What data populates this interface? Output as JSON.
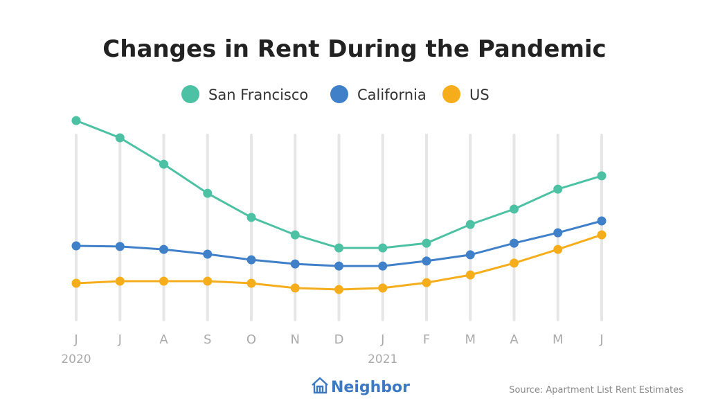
{
  "chart_data": {
    "type": "line",
    "title": "Changes in Rent During the Pandemic",
    "categories": [
      "J",
      "J",
      "A",
      "S",
      "O",
      "N",
      "D",
      "J",
      "F",
      "M",
      "A",
      "M",
      "J"
    ],
    "year_labels": [
      {
        "index": 0,
        "label": "2020"
      },
      {
        "index": 7,
        "label": "2021"
      }
    ],
    "ylim": [
      0,
      100
    ],
    "y_axis_labels_shown": false,
    "grid": "vertical",
    "legend_position": "top",
    "series": [
      {
        "name": "San Francisco",
        "color": "#4cc1a3",
        "values": [
          95.3,
          87,
          74.3,
          60.3,
          48.7,
          40.3,
          34,
          34,
          36.3,
          45.3,
          52.7,
          62.3,
          68.7
        ]
      },
      {
        "name": "California",
        "color": "#3f80c8",
        "values": [
          35,
          34.7,
          33.3,
          31,
          28.3,
          26.3,
          25.3,
          25.3,
          27.7,
          30.7,
          36.3,
          41.3,
          47
        ]
      },
      {
        "name": "US",
        "color": "#f5ad1c",
        "values": [
          17,
          18,
          18,
          18,
          17,
          14.7,
          14,
          14.7,
          17.3,
          21,
          26.7,
          33.3,
          40.3
        ]
      }
    ]
  },
  "footer": {
    "brand": "Neighbor",
    "source": "Source: Apartment List Rent Estimates"
  }
}
